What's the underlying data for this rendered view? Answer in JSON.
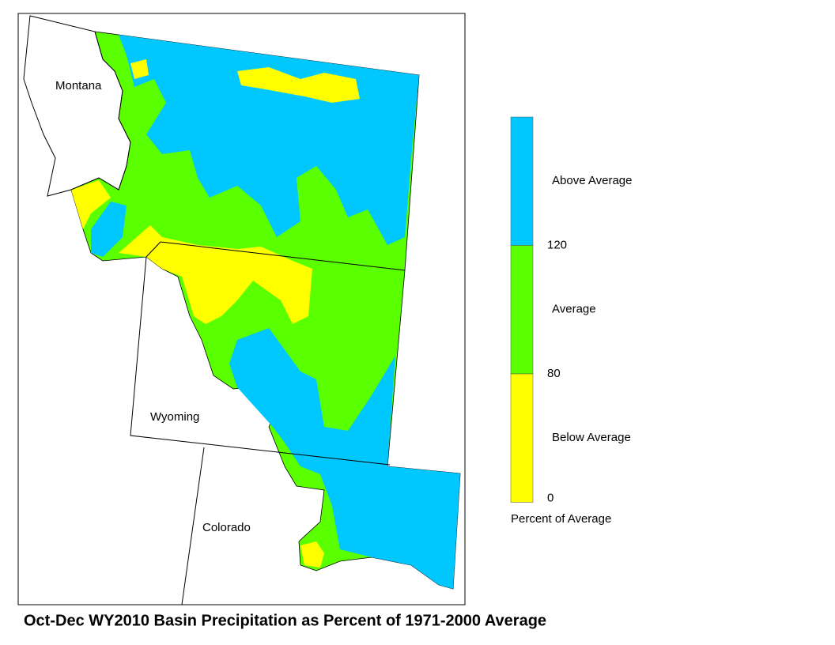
{
  "map": {
    "title": "Oct-Dec WY2010 Basin Precipitation as Percent of 1971-2000 Average",
    "regions": [
      {
        "label": "Montana"
      },
      {
        "label": "Wyoming"
      },
      {
        "label": "Colorado"
      }
    ],
    "legend": {
      "title": "Percent of Average",
      "classes": [
        {
          "label": "Above Average",
          "color": "#00c8ff"
        },
        {
          "label": "Average",
          "color": "#5aff00"
        },
        {
          "label": "Below Average",
          "color": "#ffff00"
        }
      ],
      "breaks": [
        "120",
        "80",
        "0"
      ]
    }
  }
}
